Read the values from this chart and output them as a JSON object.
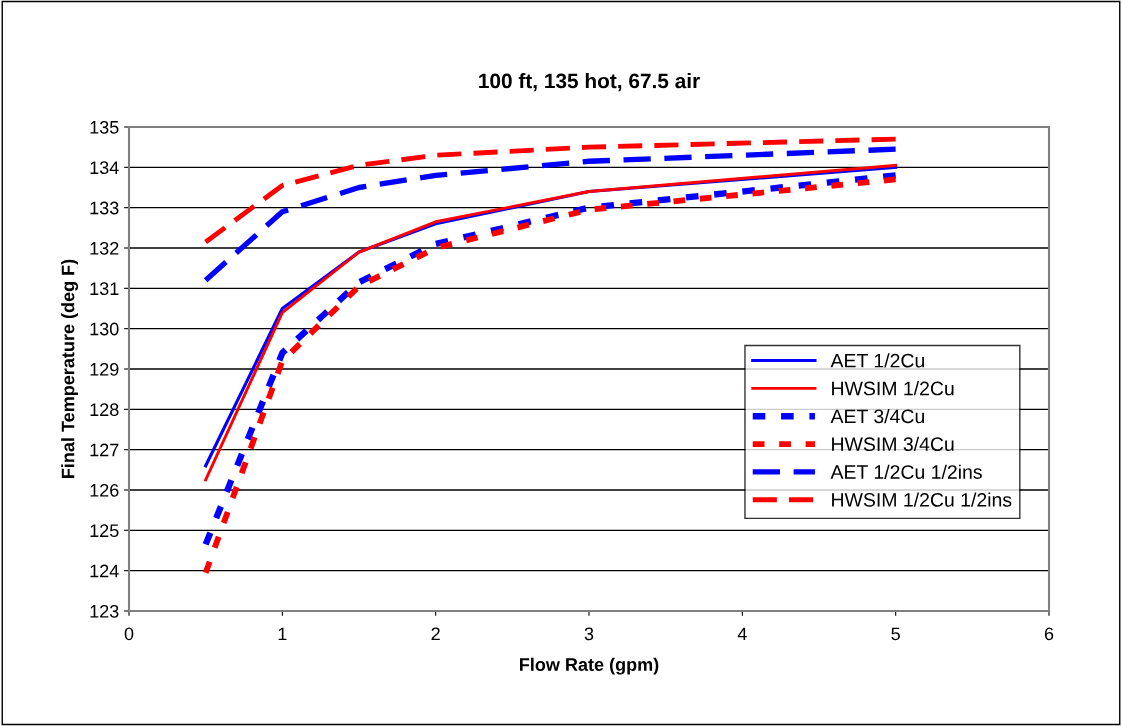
{
  "chart_data": {
    "type": "line",
    "title": "100 ft, 135 hot, 67.5 air",
    "xlabel": "Flow Rate (gpm)",
    "ylabel": "Final Temperature (deg F)",
    "x": [
      0.5,
      1,
      1.5,
      2,
      3,
      5
    ],
    "series": [
      {
        "name": "AET 1/2Cu",
        "color": "#0000ff",
        "line_style": "solid",
        "values": [
          126.6,
          130.5,
          131.9,
          132.6,
          133.4,
          134.0
        ]
      },
      {
        "name": "HWSIM 1/2Cu",
        "color": "#ff0000",
        "line_style": "solid",
        "values": [
          126.25,
          130.4,
          131.9,
          132.65,
          133.4,
          134.05
        ]
      },
      {
        "name": "AET 3/4Cu",
        "color": "#0000ff",
        "line_style": "dotted",
        "values": [
          124.65,
          129.4,
          131.15,
          132.1,
          133.0,
          133.8
        ]
      },
      {
        "name": "HWSIM 3/4Cu",
        "color": "#ff0000",
        "line_style": "dotted",
        "values": [
          123.95,
          129.2,
          131.05,
          132.0,
          132.95,
          133.7
        ]
      },
      {
        "name": "AET 1/2Cu 1/2ins",
        "color": "#0000ff",
        "line_style": "dashed",
        "values": [
          131.2,
          132.9,
          133.5,
          133.8,
          134.15,
          134.45
        ]
      },
      {
        "name": "HWSIM 1/2Cu 1/2ins",
        "color": "#ff0000",
        "line_style": "dashed",
        "values": [
          132.15,
          133.55,
          134.05,
          134.3,
          134.5,
          134.7
        ]
      }
    ],
    "xlim": [
      0,
      6
    ],
    "xticks": [
      0,
      1,
      2,
      3,
      4,
      5,
      6
    ],
    "ylim": [
      123,
      135
    ],
    "yticks": [
      123,
      124,
      125,
      126,
      127,
      128,
      129,
      130,
      131,
      132,
      133,
      134,
      135
    ],
    "grid": "y",
    "legend": "right",
    "marker": "none"
  }
}
